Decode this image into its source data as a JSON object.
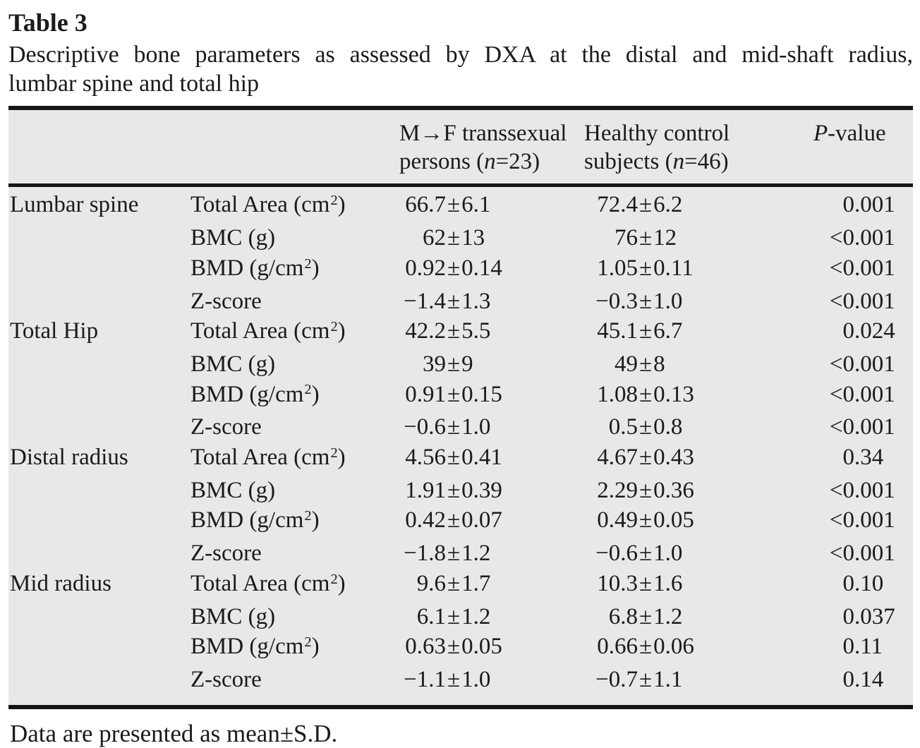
{
  "title": "Table 3",
  "caption": {
    "line1": "Descriptive bone parameters as assessed by DXA at the distal and mid-shaft radius,",
    "line2": "lumbar spine and total hip"
  },
  "header": {
    "group_col": "",
    "param_col": "",
    "mf": {
      "line1": "M→F transsexual",
      "line2_pre": "persons (",
      "n": "n",
      "line2_post": "=23)"
    },
    "hc": {
      "line1": "Healthy control",
      "line2_pre": "subjects (",
      "n": "n",
      "line2_post": "=46)"
    },
    "p": {
      "italic": "P",
      "rest": "-value"
    }
  },
  "rows": [
    {
      "group": "Lumbar spine",
      "param": "Total Area (cm²)",
      "mf": "66.7±6.1",
      "hc": "72.4±6.2",
      "p": "0.001"
    },
    {
      "group": "",
      "param": "BMC (g)",
      "mf": "62±13",
      "hc": "76±12",
      "p": "<0.001"
    },
    {
      "group": "",
      "param": "BMD (g/cm²)",
      "mf": "0.92±0.14",
      "hc": "1.05±0.11",
      "p": "<0.001"
    },
    {
      "group": "",
      "param": "Z-score",
      "mf": "−1.4±1.3",
      "hc": "−0.3±1.0",
      "p": "<0.001"
    },
    {
      "group": "Total Hip",
      "param": "Total Area (cm²)",
      "mf": "42.2±5.5",
      "hc": "45.1±6.7",
      "p": "0.024"
    },
    {
      "group": "",
      "param": "BMC (g)",
      "mf": "39±9",
      "hc": "49±8",
      "p": "<0.001"
    },
    {
      "group": "",
      "param": "BMD (g/cm²)",
      "mf": "0.91±0.15",
      "hc": "1.08±0.13",
      "p": "<0.001"
    },
    {
      "group": "",
      "param": "Z-score",
      "mf": "−0.6±1.0",
      "hc": "0.5±0.8",
      "p": "<0.001"
    },
    {
      "group": "Distal radius",
      "param": "Total Area (cm²)",
      "mf": "4.56±0.41",
      "hc": "4.67±0.43",
      "p": "0.34"
    },
    {
      "group": "",
      "param": "BMC (g)",
      "mf": "1.91±0.39",
      "hc": "2.29±0.36",
      "p": "<0.001"
    },
    {
      "group": "",
      "param": "BMD (g/cm²)",
      "mf": "0.42±0.07",
      "hc": "0.49±0.05",
      "p": "<0.001"
    },
    {
      "group": "",
      "param": "Z-score",
      "mf": "−1.8±1.2",
      "hc": "−0.6±1.0",
      "p": "<0.001"
    },
    {
      "group": "Mid radius",
      "param": "Total Area (cm²)",
      "mf": "9.6±1.7",
      "hc": "10.3±1.6",
      "p": "0.10"
    },
    {
      "group": "",
      "param": "BMC (g)",
      "mf": "6.1±1.2",
      "hc": "6.8±1.2",
      "p": "0.037"
    },
    {
      "group": "",
      "param": "BMD (g/cm²)",
      "mf": "0.63±0.05",
      "hc": "0.66±0.06",
      "p": "0.11"
    },
    {
      "group": "",
      "param": "Z-score",
      "mf": "−1.1±1.0",
      "hc": "−0.7±1.1",
      "p": "0.14"
    }
  ],
  "footnote": "Data are presented as mean±S.D.",
  "colors": {
    "table_background": "#e8e8e8",
    "rule": "#151515",
    "text": "#1b1b1b"
  }
}
